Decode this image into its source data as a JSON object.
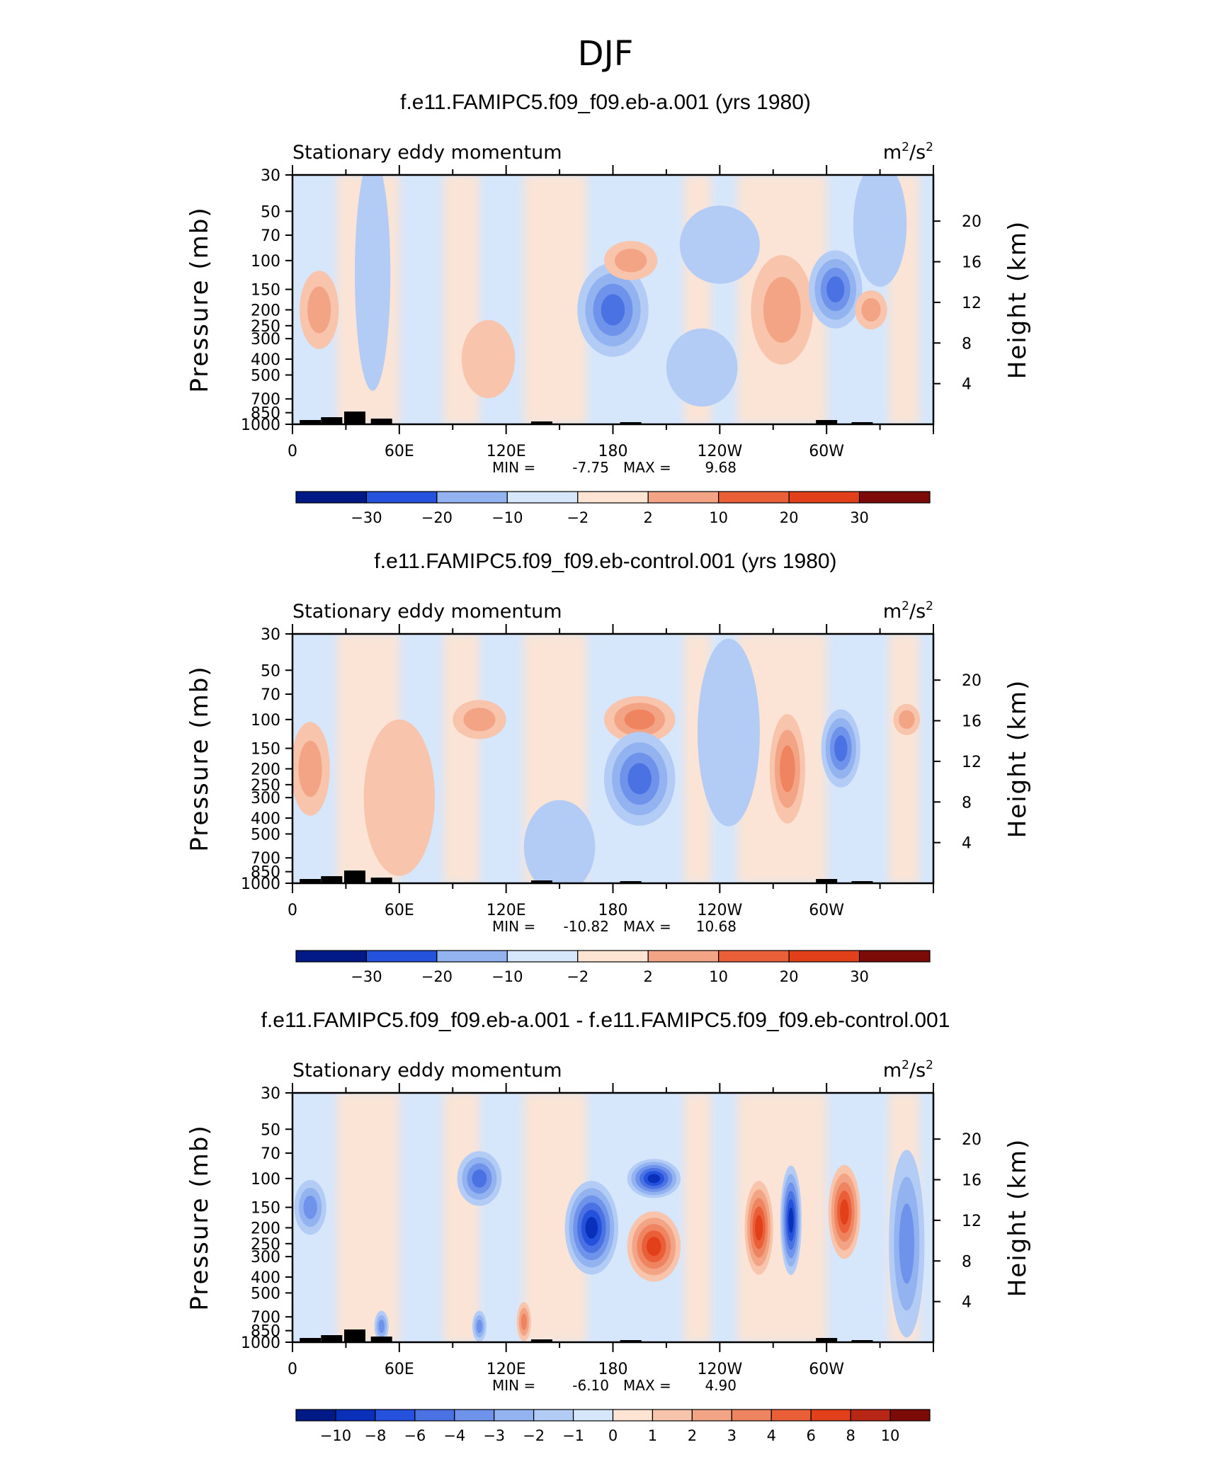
{
  "figure_title": "DJF",
  "chart_data": [
    {
      "type": "heatmap",
      "title": "f.e11.FAMIPC5.f09_f09.eb-a.001 (yrs 1980)",
      "subtitle_left": "Stationary eddy momentum",
      "units_base": "m",
      "units_mid": "/s",
      "units_exp": "2",
      "ylabel_left": "Pressure (mb)",
      "ylabel_right": "Height (km)",
      "pressure_ticks": [
        "30",
        "50",
        "70",
        "100",
        "150",
        "200",
        "250",
        "300",
        "400",
        "500",
        "700",
        "850",
        "1000"
      ],
      "height_ticks": [
        "20",
        "16",
        "12",
        "8",
        "4"
      ],
      "lon_ticks": [
        "0",
        "60E",
        "120E",
        "180",
        "120W",
        "60W"
      ],
      "min_label": "MIN =",
      "min_value": "-7.75",
      "max_label": "MAX =",
      "max_value": "9.68",
      "colorbar_ticks": [
        "-30",
        "-20",
        "-10",
        "-2",
        "2",
        "10",
        "20",
        "30"
      ],
      "blobs": [
        {
          "lon": 15,
          "p": 200,
          "level": 2,
          "sign": 1,
          "w": 22,
          "h": 0.5
        },
        {
          "lon": 45,
          "p": 120,
          "level": 1,
          "sign": -1,
          "w": 20,
          "h": 1.5
        },
        {
          "lon": 180,
          "p": 200,
          "level": 4,
          "sign": -1,
          "w": 40,
          "h": 0.6
        },
        {
          "lon": 190,
          "p": 100,
          "level": 2,
          "sign": 1,
          "w": 30,
          "h": 0.25
        },
        {
          "lon": 275,
          "p": 200,
          "level": 2,
          "sign": 1,
          "w": 35,
          "h": 0.7
        },
        {
          "lon": 305,
          "p": 150,
          "level": 4,
          "sign": -1,
          "w": 30,
          "h": 0.5
        },
        {
          "lon": 325,
          "p": 200,
          "level": 2,
          "sign": 1,
          "w": 18,
          "h": 0.25
        },
        {
          "lon": 240,
          "p": 80,
          "level": 1,
          "sign": -1,
          "w": 45,
          "h": 0.5
        },
        {
          "lon": 110,
          "p": 400,
          "level": 1,
          "sign": 1,
          "w": 30,
          "h": 0.5
        },
        {
          "lon": 230,
          "p": 450,
          "level": 1,
          "sign": -1,
          "w": 40,
          "h": 0.5
        },
        {
          "lon": 330,
          "p": 60,
          "level": 1,
          "sign": -1,
          "w": 30,
          "h": 0.8
        }
      ]
    },
    {
      "type": "heatmap",
      "title": "f.e11.FAMIPC5.f09_f09.eb-control.001 (yrs 1980)",
      "subtitle_left": "Stationary eddy momentum",
      "units_base": "m",
      "units_mid": "/s",
      "units_exp": "2",
      "ylabel_left": "Pressure (mb)",
      "ylabel_right": "Height (km)",
      "pressure_ticks": [
        "30",
        "50",
        "70",
        "100",
        "150",
        "200",
        "250",
        "300",
        "400",
        "500",
        "700",
        "850",
        "1000"
      ],
      "height_ticks": [
        "20",
        "16",
        "12",
        "8",
        "4"
      ],
      "lon_ticks": [
        "0",
        "60E",
        "120E",
        "180",
        "120W",
        "60W"
      ],
      "min_label": "MIN =",
      "min_value": "-10.82",
      "max_label": "MAX =",
      "max_value": "10.68",
      "colorbar_ticks": [
        "-30",
        "-20",
        "-10",
        "-2",
        "2",
        "10",
        "20",
        "30"
      ],
      "blobs": [
        {
          "lon": 10,
          "p": 200,
          "level": 2,
          "sign": 1,
          "w": 22,
          "h": 0.6
        },
        {
          "lon": 105,
          "p": 100,
          "level": 2,
          "sign": 1,
          "w": 30,
          "h": 0.25
        },
        {
          "lon": 195,
          "p": 100,
          "level": 3,
          "sign": 1,
          "w": 40,
          "h": 0.3
        },
        {
          "lon": 195,
          "p": 230,
          "level": 4,
          "sign": -1,
          "w": 40,
          "h": 0.6
        },
        {
          "lon": 278,
          "p": 200,
          "level": 3,
          "sign": 1,
          "w": 20,
          "h": 0.7
        },
        {
          "lon": 308,
          "p": 150,
          "level": 4,
          "sign": -1,
          "w": 22,
          "h": 0.5
        },
        {
          "lon": 345,
          "p": 100,
          "level": 2,
          "sign": 1,
          "w": 15,
          "h": 0.2
        },
        {
          "lon": 60,
          "p": 300,
          "level": 1,
          "sign": 1,
          "w": 40,
          "h": 1.0
        },
        {
          "lon": 150,
          "p": 600,
          "level": 1,
          "sign": -1,
          "w": 40,
          "h": 0.6
        },
        {
          "lon": 245,
          "p": 120,
          "level": 1,
          "sign": -1,
          "w": 35,
          "h": 1.2
        }
      ]
    },
    {
      "type": "heatmap",
      "title": "f.e11.FAMIPC5.f09_f09.eb-a.001 - f.e11.FAMIPC5.f09_f09.eb-control.001",
      "subtitle_left": "Stationary eddy momentum",
      "units_base": "m",
      "units_mid": "/s",
      "units_exp": "2",
      "ylabel_left": "Pressure (mb)",
      "ylabel_right": "Height (km)",
      "pressure_ticks": [
        "30",
        "50",
        "70",
        "100",
        "150",
        "200",
        "250",
        "300",
        "400",
        "500",
        "700",
        "850",
        "1000"
      ],
      "height_ticks": [
        "20",
        "16",
        "12",
        "8",
        "4"
      ],
      "lon_ticks": [
        "0",
        "60E",
        "120E",
        "180",
        "120W",
        "60W"
      ],
      "min_label": "MIN =",
      "min_value": "-6.10",
      "max_label": "MAX =",
      "max_value": "4.90",
      "colorbar_ticks": [
        "-10",
        "-8",
        "-6",
        "-4",
        "-3",
        "-2",
        "-1",
        "0",
        "1",
        "2",
        "3",
        "4",
        "6",
        "8",
        "10"
      ],
      "blobs": [
        {
          "lon": 10,
          "p": 150,
          "level": 3,
          "sign": -1,
          "w": 18,
          "h": 0.35
        },
        {
          "lon": 105,
          "p": 100,
          "level": 4,
          "sign": -1,
          "w": 25,
          "h": 0.35
        },
        {
          "lon": 168,
          "p": 200,
          "level": 6,
          "sign": -1,
          "w": 30,
          "h": 0.6
        },
        {
          "lon": 203,
          "p": 100,
          "level": 6,
          "sign": -1,
          "w": 30,
          "h": 0.25
        },
        {
          "lon": 203,
          "p": 260,
          "level": 5,
          "sign": 1,
          "w": 30,
          "h": 0.45
        },
        {
          "lon": 262,
          "p": 200,
          "level": 5,
          "sign": 1,
          "w": 16,
          "h": 0.6
        },
        {
          "lon": 280,
          "p": 180,
          "level": 6,
          "sign": -1,
          "w": 12,
          "h": 0.7
        },
        {
          "lon": 310,
          "p": 160,
          "level": 5,
          "sign": 1,
          "w": 18,
          "h": 0.6
        },
        {
          "lon": 345,
          "p": 250,
          "level": 3,
          "sign": -1,
          "w": 20,
          "h": 1.2
        },
        {
          "lon": 50,
          "p": 800,
          "level": 3,
          "sign": -1,
          "w": 8,
          "h": 0.2
        },
        {
          "lon": 105,
          "p": 800,
          "level": 3,
          "sign": -1,
          "w": 8,
          "h": 0.2
        },
        {
          "lon": 130,
          "p": 750,
          "level": 3,
          "sign": 1,
          "w": 8,
          "h": 0.25
        }
      ]
    }
  ],
  "colors": {
    "neg": [
      "#d6e6fb",
      "#b2ccf5",
      "#92b2f0",
      "#6f93ea",
      "#4a72e3",
      "#2452dc",
      "#0a2fb9",
      "#021a86"
    ],
    "pos": [
      "#fde4d3",
      "#f8c4ab",
      "#f3a485",
      "#ef8560",
      "#ea5f38",
      "#e2401a",
      "#b82616",
      "#7c0b08"
    ],
    "topo": "#000000"
  }
}
